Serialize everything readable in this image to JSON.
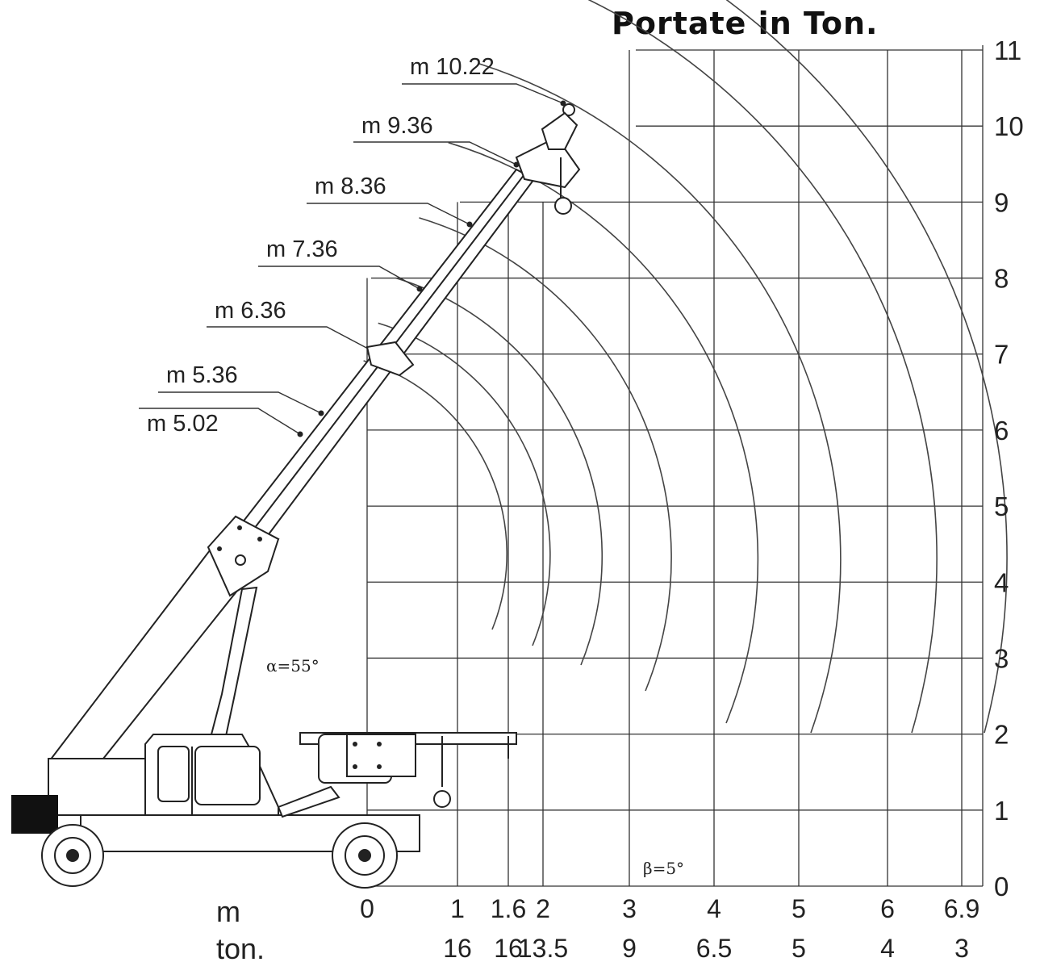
{
  "title": "Portate in Ton.",
  "alpha_label": "α=55°",
  "beta_label": "β=5°",
  "row_labels": {
    "m": "m",
    "ton": "ton."
  },
  "y_ticks": [
    "0",
    "1",
    "2",
    "3",
    "4",
    "5",
    "6",
    "7",
    "8",
    "9",
    "10",
    "11"
  ],
  "x_ticks": [
    {
      "label": "0",
      "value": 0,
      "ton": ""
    },
    {
      "label": "1",
      "value": 1,
      "ton": "16"
    },
    {
      "label": "1.6",
      "value": 1.6,
      "ton": "16"
    },
    {
      "label": "2",
      "value": 2,
      "ton": "13.5"
    },
    {
      "label": "3",
      "value": 3,
      "ton": "9"
    },
    {
      "label": "4",
      "value": 4,
      "ton": "6.5"
    },
    {
      "label": "5",
      "value": 5,
      "ton": "5"
    },
    {
      "label": "6",
      "value": 6,
      "ton": "4"
    },
    {
      "label": "6.9",
      "value": 6.9,
      "ton": "3"
    }
  ],
  "boom_lengths": [
    {
      "label": "m 10.22",
      "value": 10.22
    },
    {
      "label": "m 9.36",
      "value": 9.36
    },
    {
      "label": "m 8.36",
      "value": 8.36
    },
    {
      "label": "m 7.36",
      "value": 7.36
    },
    {
      "label": "m 6.36",
      "value": 6.36
    },
    {
      "label": "m 5.36",
      "value": 5.36
    },
    {
      "label": "m 5.02",
      "value": 5.02
    }
  ],
  "icons": {
    "crane": "crane-truck-icon",
    "wheel": "wheel-icon",
    "hook": "hook-icon"
  }
}
